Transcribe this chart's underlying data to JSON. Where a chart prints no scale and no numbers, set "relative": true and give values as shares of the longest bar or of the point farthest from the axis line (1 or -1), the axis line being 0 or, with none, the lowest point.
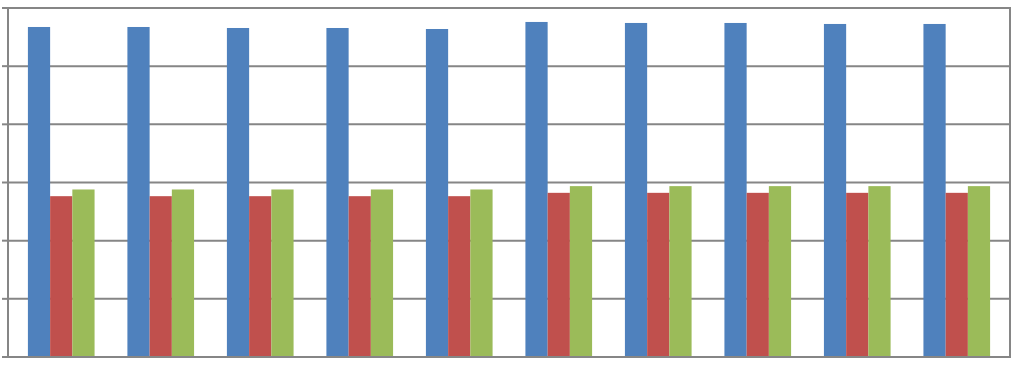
{
  "chart_data": {
    "type": "bar",
    "relative": true,
    "grid": true,
    "categories": [
      null,
      null,
      null,
      null,
      null,
      null,
      null,
      null,
      null,
      null
    ],
    "series": [
      {
        "color": "#4f81bd",
        "values": [
          0.985,
          0.985,
          0.982,
          0.982,
          0.979,
          1,
          0.997,
          0.997,
          0.994,
          0.994
        ]
      },
      {
        "color": "#c0504d",
        "values": [
          0.48,
          0.48,
          0.48,
          0.48,
          0.48,
          0.49,
          0.49,
          0.49,
          0.49,
          0.49
        ]
      },
      {
        "color": "#9bbb59",
        "values": [
          0.5,
          0.5,
          0.5,
          0.5,
          0.5,
          0.51,
          0.51,
          0.51,
          0.51,
          0.51
        ]
      }
    ]
  }
}
